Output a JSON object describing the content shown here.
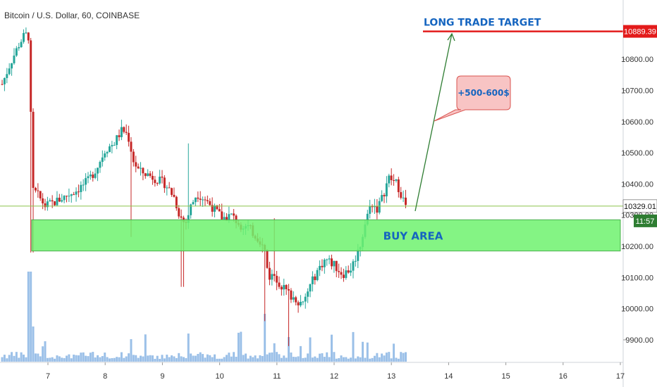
{
  "header": {
    "title": "Bitcoin / U.S. Dollar, 60, COINBASE"
  },
  "colors": {
    "up": "#26a69a",
    "down": "#c62828",
    "volume": "#90b9e6",
    "buy_zone": "#6ef26e",
    "target_line": "#e31b1b",
    "annotation_text": "#1565c0",
    "arrow": "#2e7d32",
    "callout_fill": "#f8c4c4",
    "callout_border": "#d9534f",
    "price_line": "#8bc34a"
  },
  "annotations": {
    "target_label": "LONG TRADE TARGET",
    "buy_label": "BUY AREA",
    "gain_label": "+500-600$"
  },
  "chart_data": {
    "type": "candlestick",
    "title": "Bitcoin / U.S. Dollar, 60, COINBASE",
    "xlabel": "",
    "ylabel": "",
    "ylim": [
      9830,
      10990
    ],
    "x_ticks": [
      "7",
      "8",
      "9",
      "10",
      "11",
      "12",
      "13",
      "14",
      "15",
      "16",
      "17"
    ],
    "y_ticks": [
      "9900.00",
      "10000.00",
      "10100.00",
      "10200.00",
      "10300.00",
      "10400.00",
      "10500.00",
      "10600.00",
      "10700.00",
      "10800.00"
    ],
    "target_price": 10889.39,
    "target_price_label": "10889.39",
    "last_price": 10329.01,
    "last_price_label": "10329.01",
    "countdown_label": "11:57",
    "buy_zone": [
      10185,
      10285
    ],
    "trend": [
      [
        6.2,
        10720
      ],
      [
        6.35,
        10790
      ],
      [
        6.5,
        10850
      ],
      [
        6.6,
        10880
      ],
      [
        6.68,
        10870
      ],
      [
        6.72,
        10380
      ],
      [
        6.8,
        10370
      ],
      [
        6.95,
        10330
      ],
      [
        7.1,
        10340
      ],
      [
        7.3,
        10360
      ],
      [
        7.5,
        10380
      ],
      [
        7.7,
        10410
      ],
      [
        7.85,
        10450
      ],
      [
        8.0,
        10510
      ],
      [
        8.15,
        10530
      ],
      [
        8.3,
        10575
      ],
      [
        8.4,
        10555
      ],
      [
        8.5,
        10470
      ],
      [
        8.6,
        10440
      ],
      [
        8.75,
        10430
      ],
      [
        8.9,
        10415
      ],
      [
        9.05,
        10400
      ],
      [
        9.2,
        10360
      ],
      [
        9.3,
        10300
      ],
      [
        9.4,
        10270
      ],
      [
        9.5,
        10330
      ],
      [
        9.6,
        10370
      ],
      [
        9.75,
        10350
      ],
      [
        9.9,
        10320
      ],
      [
        10.05,
        10290
      ],
      [
        10.2,
        10300
      ],
      [
        10.35,
        10270
      ],
      [
        10.5,
        10260
      ],
      [
        10.6,
        10240
      ],
      [
        10.7,
        10220
      ],
      [
        10.8,
        10180
      ],
      [
        10.85,
        10100
      ],
      [
        10.95,
        10110
      ],
      [
        11.05,
        10080
      ],
      [
        11.15,
        10060
      ],
      [
        11.25,
        10040
      ],
      [
        11.35,
        10030
      ],
      [
        11.45,
        10010
      ],
      [
        11.55,
        10060
      ],
      [
        11.7,
        10120
      ],
      [
        11.85,
        10160
      ],
      [
        12.0,
        10140
      ],
      [
        12.15,
        10110
      ],
      [
        12.3,
        10130
      ],
      [
        12.45,
        10200
      ],
      [
        12.55,
        10280
      ],
      [
        12.65,
        10340
      ],
      [
        12.75,
        10320
      ],
      [
        12.85,
        10360
      ],
      [
        12.95,
        10420
      ],
      [
        13.1,
        10400
      ],
      [
        13.25,
        10330
      ]
    ]
  }
}
